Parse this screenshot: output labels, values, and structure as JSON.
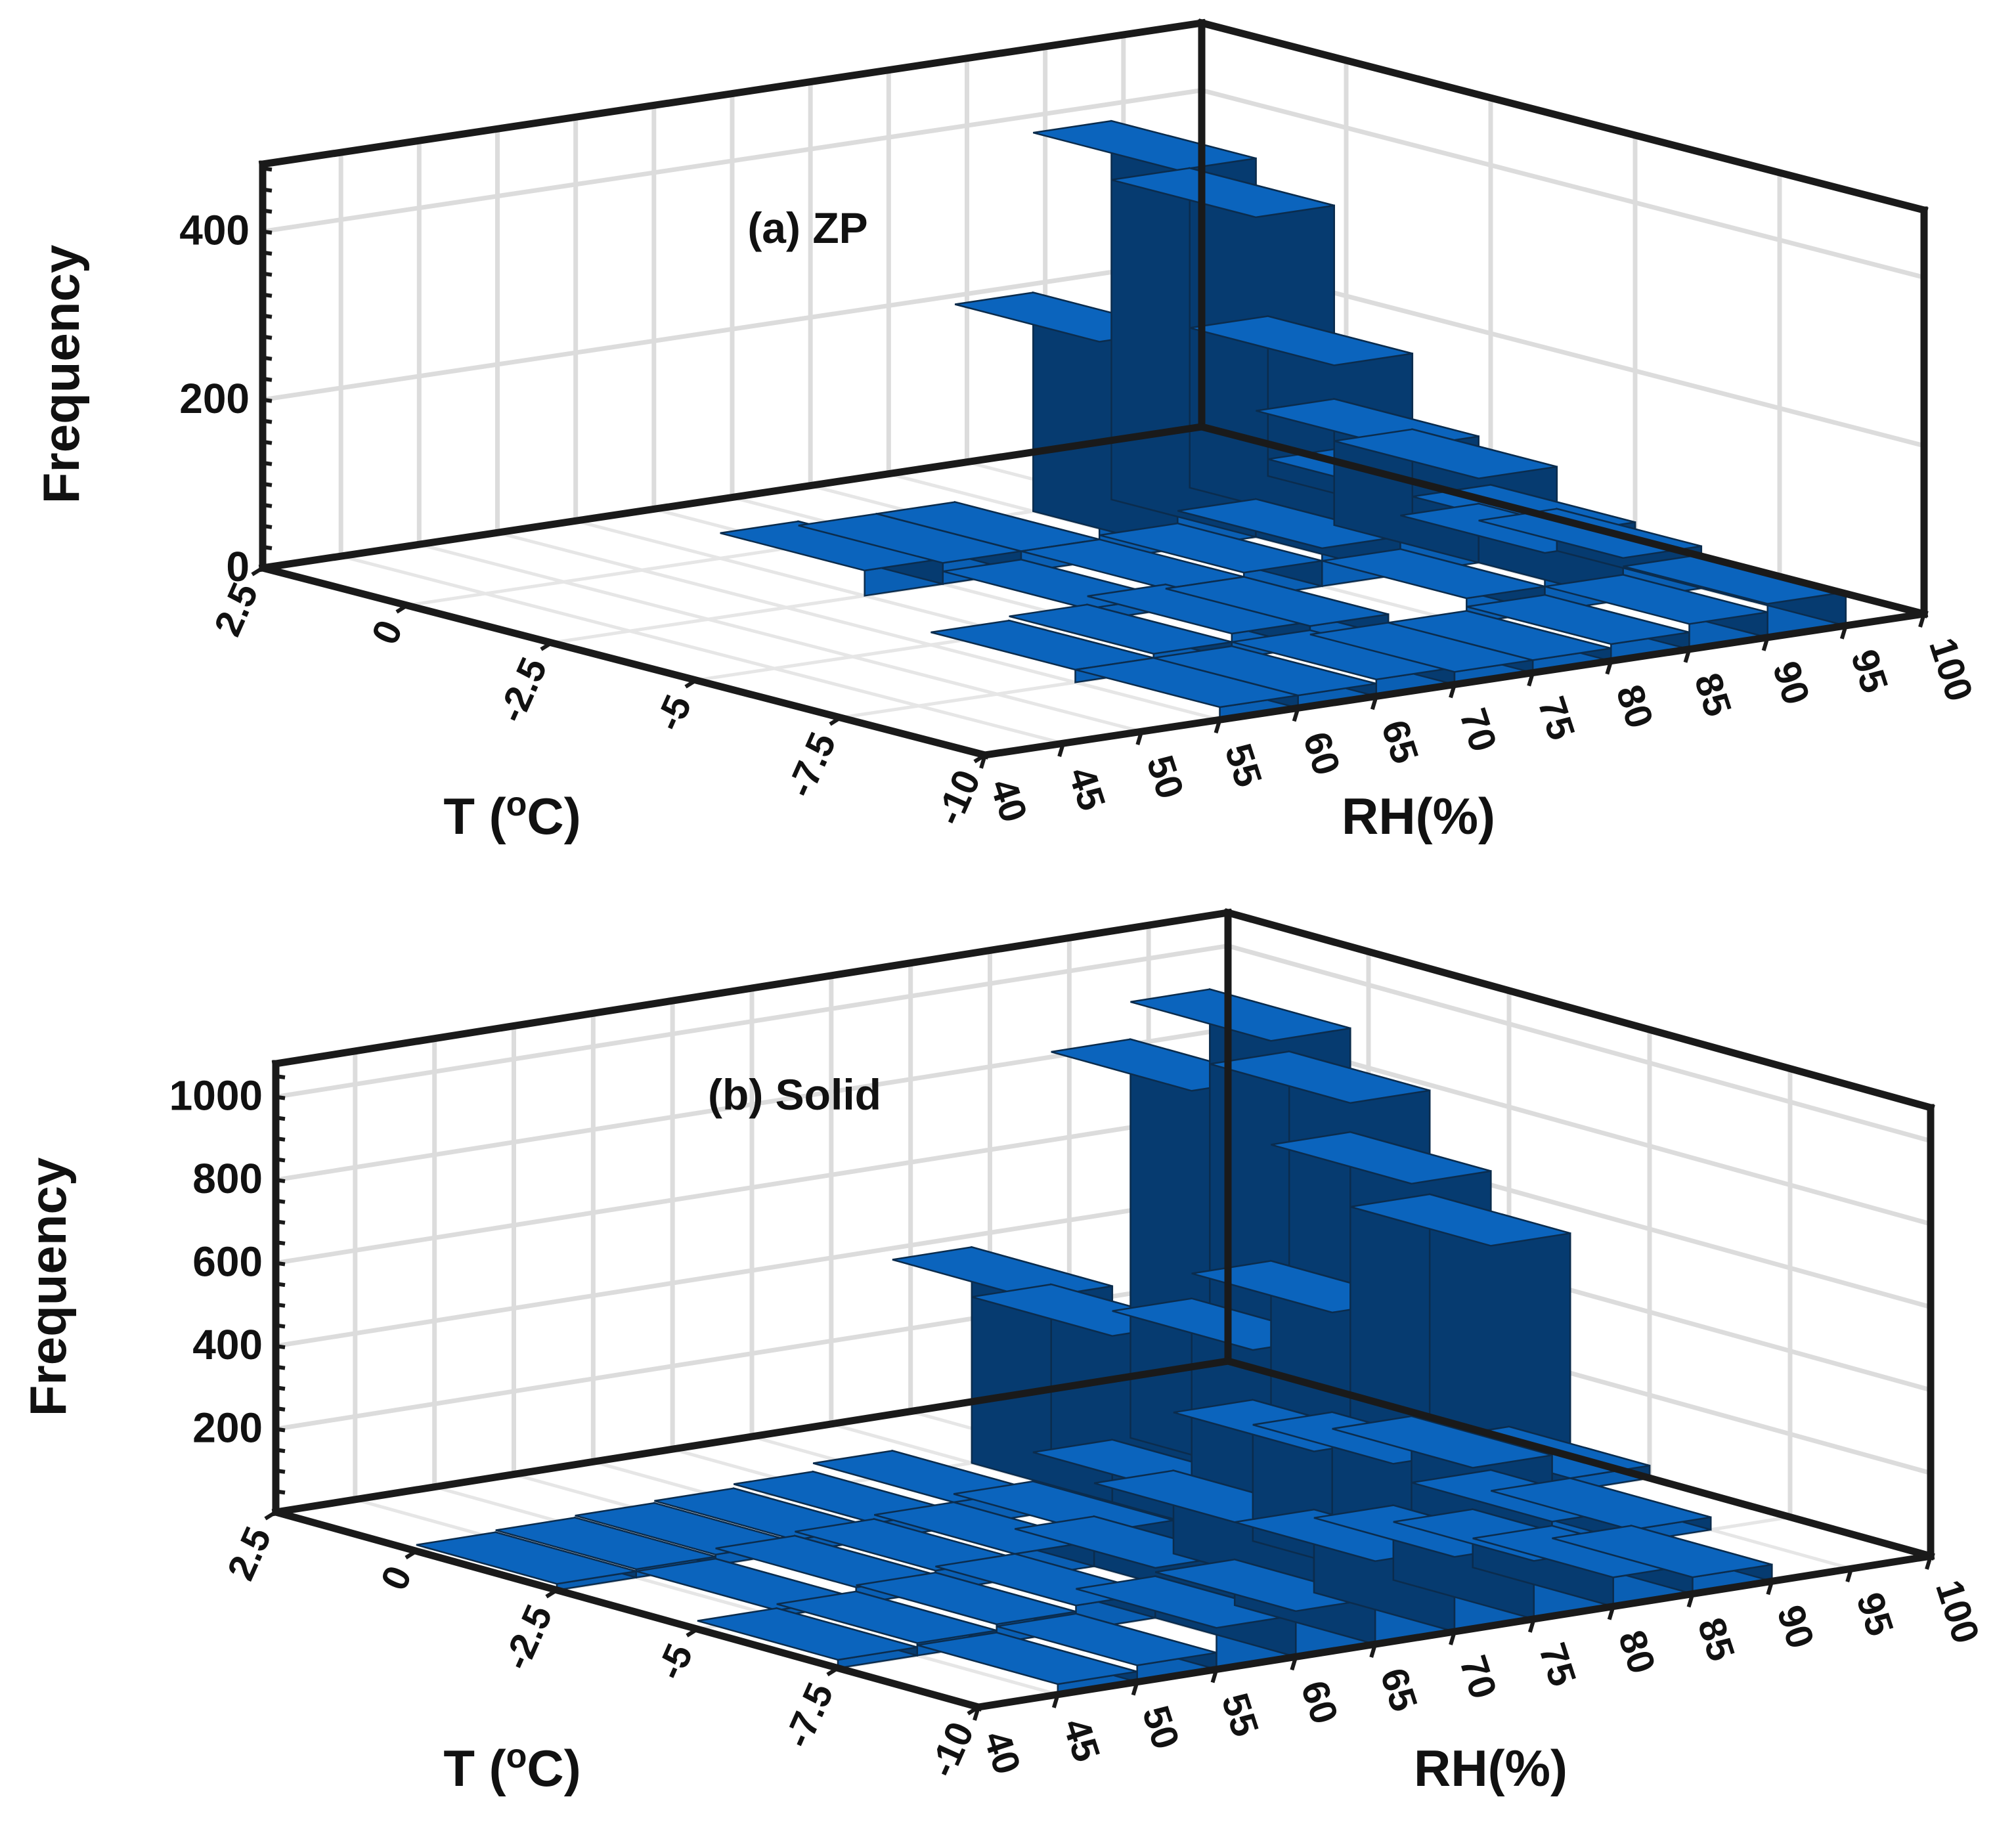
{
  "chart_data": [
    {
      "panel": "a",
      "type": "bar3d",
      "title": "(a) ZP",
      "xlabel": "RH(%)",
      "ylabel": "T (oC)",
      "zlabel": "Frequency",
      "xticks": [
        "40",
        "45",
        "50",
        "55",
        "60",
        "65",
        "70",
        "75",
        "80",
        "85",
        "90",
        "95",
        "100"
      ],
      "yticks": [
        "2.5",
        "0",
        "-2.5",
        "-5",
        "-7.5",
        "-10"
      ],
      "zticks": [
        "0",
        "200",
        "400"
      ],
      "zlim": [
        0,
        480
      ],
      "color": "#0a5fb4",
      "bars": [
        {
          "rh": [
            60,
            65
          ],
          "t": [
            -2.5,
            0
          ],
          "f": 30
        },
        {
          "rh": [
            65,
            70
          ],
          "t": [
            -2.5,
            0
          ],
          "f": 25
        },
        {
          "rh": [
            70,
            75
          ],
          "t": [
            -2.5,
            0
          ],
          "f": 25
        },
        {
          "rh": [
            75,
            80
          ],
          "t": [
            -2.5,
            0
          ],
          "f": 260
        },
        {
          "rh": [
            80,
            85
          ],
          "t": [
            -2.5,
            0
          ],
          "f": 450
        },
        {
          "rh": [
            85,
            90
          ],
          "t": [
            -2.5,
            0
          ],
          "f": 380
        },
        {
          "rh": [
            90,
            95
          ],
          "t": [
            -2.5,
            0
          ],
          "f": 190
        },
        {
          "rh": [
            95,
            100
          ],
          "t": [
            -2.5,
            0
          ],
          "f": 20
        },
        {
          "rh": [
            65,
            70
          ],
          "t": [
            -5,
            -2.5
          ],
          "f": 15
        },
        {
          "rh": [
            70,
            75
          ],
          "t": [
            -5,
            -2.5
          ],
          "f": 25
        },
        {
          "rh": [
            75,
            80
          ],
          "t": [
            -5,
            -2.5
          ],
          "f": 30
        },
        {
          "rh": [
            80,
            85
          ],
          "t": [
            -5,
            -2.5
          ],
          "f": 45
        },
        {
          "rh": [
            85,
            90
          ],
          "t": [
            -5,
            -2.5
          ],
          "f": 150
        },
        {
          "rh": [
            90,
            95
          ],
          "t": [
            -5,
            -2.5
          ],
          "f": 100
        },
        {
          "rh": [
            95,
            100
          ],
          "t": [
            -5,
            -2.5
          ],
          "f": 20
        },
        {
          "rh": [
            55,
            60
          ],
          "t": [
            -7.5,
            -5
          ],
          "f": 15
        },
        {
          "rh": [
            60,
            65
          ],
          "t": [
            -7.5,
            -5
          ],
          "f": 20
        },
        {
          "rh": [
            65,
            70
          ],
          "t": [
            -7.5,
            -5
          ],
          "f": 30
        },
        {
          "rh": [
            70,
            75
          ],
          "t": [
            -7.5,
            -5
          ],
          "f": 25
        },
        {
          "rh": [
            80,
            85
          ],
          "t": [
            -7.5,
            -5
          ],
          "f": 30
        },
        {
          "rh": [
            85,
            90
          ],
          "t": [
            -7.5,
            -5
          ],
          "f": 70
        },
        {
          "rh": [
            90,
            95
          ],
          "t": [
            -7.5,
            -5
          ],
          "f": 50
        },
        {
          "rh": [
            55,
            60
          ],
          "t": [
            -10,
            -7.5
          ],
          "f": 15
        },
        {
          "rh": [
            60,
            65
          ],
          "t": [
            -10,
            -7.5
          ],
          "f": 15
        },
        {
          "rh": [
            65,
            70
          ],
          "t": [
            -10,
            -7.5
          ],
          "f": 20
        },
        {
          "rh": [
            70,
            75
          ],
          "t": [
            -10,
            -7.5
          ],
          "f": 15
        },
        {
          "rh": [
            75,
            80
          ],
          "t": [
            -10,
            -7.5
          ],
          "f": 15
        },
        {
          "rh": [
            80,
            85
          ],
          "t": [
            -10,
            -7.5
          ],
          "f": 20
        },
        {
          "rh": [
            85,
            90
          ],
          "t": [
            -10,
            -7.5
          ],
          "f": 30
        },
        {
          "rh": [
            90,
            95
          ],
          "t": [
            -10,
            -7.5
          ],
          "f": 40
        }
      ]
    },
    {
      "panel": "b",
      "type": "bar3d",
      "title": "(b) Solid",
      "xlabel": "RH(%)",
      "ylabel": "T (oC)",
      "zlabel": "Frequency",
      "xticks": [
        "40",
        "45",
        "50",
        "55",
        "60",
        "65",
        "70",
        "75",
        "80",
        "85",
        "90",
        "95",
        "100"
      ],
      "yticks": [
        "2.5",
        "0",
        "-2.5",
        "-5",
        "-7.5",
        "-10"
      ],
      "zticks": [
        "200",
        "400",
        "600",
        "800",
        "1000"
      ],
      "zlim": [
        0,
        1080
      ],
      "color": "#0a5fb4",
      "bars": [
        {
          "rh": [
            40,
            45
          ],
          "t": [
            -2.5,
            0
          ],
          "f": 15
        },
        {
          "rh": [
            45,
            50
          ],
          "t": [
            -2.5,
            0
          ],
          "f": 20
        },
        {
          "rh": [
            50,
            55
          ],
          "t": [
            -2.5,
            0
          ],
          "f": 25
        },
        {
          "rh": [
            55,
            60
          ],
          "t": [
            -2.5,
            0
          ],
          "f": 30
        },
        {
          "rh": [
            60,
            65
          ],
          "t": [
            -2.5,
            0
          ],
          "f": 40
        },
        {
          "rh": [
            65,
            70
          ],
          "t": [
            -2.5,
            0
          ],
          "f": 60
        },
        {
          "rh": [
            70,
            75
          ],
          "t": [
            -2.5,
            0
          ],
          "f": 520
        },
        {
          "rh": [
            75,
            80
          ],
          "t": [
            -2.5,
            0
          ],
          "f": 400
        },
        {
          "rh": [
            80,
            85
          ],
          "t": [
            -2.5,
            0
          ],
          "f": 960
        },
        {
          "rh": [
            85,
            90
          ],
          "t": [
            -2.5,
            0
          ],
          "f": 1050
        },
        {
          "rh": [
            90,
            95
          ],
          "t": [
            -2.5,
            0
          ],
          "f": 870
        },
        {
          "rh": [
            95,
            100
          ],
          "t": [
            -2.5,
            0
          ],
          "f": 30
        },
        {
          "rh": [
            45,
            50
          ],
          "t": [
            -5,
            -2.5
          ],
          "f": 15
        },
        {
          "rh": [
            50,
            55
          ],
          "t": [
            -5,
            -2.5
          ],
          "f": 40
        },
        {
          "rh": [
            55,
            60
          ],
          "t": [
            -5,
            -2.5
          ],
          "f": 50
        },
        {
          "rh": [
            60,
            65
          ],
          "t": [
            -5,
            -2.5
          ],
          "f": 60
        },
        {
          "rh": [
            65,
            70
          ],
          "t": [
            -5,
            -2.5
          ],
          "f": 80
        },
        {
          "rh": [
            70,
            75
          ],
          "t": [
            -5,
            -2.5
          ],
          "f": 150
        },
        {
          "rh": [
            75,
            80
          ],
          "t": [
            -5,
            -2.5
          ],
          "f": 460
        },
        {
          "rh": [
            80,
            85
          ],
          "t": [
            -5,
            -2.5
          ],
          "f": 520
        },
        {
          "rh": [
            85,
            90
          ],
          "t": [
            -5,
            -2.5
          ],
          "f": 800
        },
        {
          "rh": [
            90,
            95
          ],
          "t": [
            -5,
            -2.5
          ],
          "f": 620
        },
        {
          "rh": [
            95,
            100
          ],
          "t": [
            -5,
            -2.5
          ],
          "f": 30
        },
        {
          "rh": [
            40,
            45
          ],
          "t": [
            -7.5,
            -5
          ],
          "f": 20
        },
        {
          "rh": [
            45,
            50
          ],
          "t": [
            -7.5,
            -5
          ],
          "f": 30
        },
        {
          "rh": [
            50,
            55
          ],
          "t": [
            -7.5,
            -5
          ],
          "f": 45
        },
        {
          "rh": [
            55,
            60
          ],
          "t": [
            -7.5,
            -5
          ],
          "f": 60
        },
        {
          "rh": [
            60,
            65
          ],
          "t": [
            -7.5,
            -5
          ],
          "f": 120
        },
        {
          "rh": [
            65,
            70
          ],
          "t": [
            -7.5,
            -5
          ],
          "f": 200
        },
        {
          "rh": [
            70,
            75
          ],
          "t": [
            -7.5,
            -5
          ],
          "f": 340
        },
        {
          "rh": [
            75,
            80
          ],
          "t": [
            -7.5,
            -5
          ],
          "f": 280
        },
        {
          "rh": [
            80,
            85
          ],
          "t": [
            -7.5,
            -5
          ],
          "f": 240
        },
        {
          "rh": [
            85,
            90
          ],
          "t": [
            -7.5,
            -5
          ],
          "f": 80
        },
        {
          "rh": [
            90,
            95
          ],
          "t": [
            -7.5,
            -5
          ],
          "f": 30
        },
        {
          "rh": [
            45,
            50
          ],
          "t": [
            -10,
            -7.5
          ],
          "f": 25
        },
        {
          "rh": [
            50,
            55
          ],
          "t": [
            -10,
            -7.5
          ],
          "f": 40
        },
        {
          "rh": [
            55,
            60
          ],
          "t": [
            -10,
            -7.5
          ],
          "f": 100
        },
        {
          "rh": [
            60,
            65
          ],
          "t": [
            -10,
            -7.5
          ],
          "f": 110
        },
        {
          "rh": [
            65,
            70
          ],
          "t": [
            -10,
            -7.5
          ],
          "f": 200
        },
        {
          "rh": [
            70,
            75
          ],
          "t": [
            -10,
            -7.5
          ],
          "f": 180
        },
        {
          "rh": [
            75,
            80
          ],
          "t": [
            -10,
            -7.5
          ],
          "f": 140
        },
        {
          "rh": [
            80,
            85
          ],
          "t": [
            -10,
            -7.5
          ],
          "f": 70
        },
        {
          "rh": [
            85,
            90
          ],
          "t": [
            -10,
            -7.5
          ],
          "f": 40
        }
      ]
    }
  ]
}
